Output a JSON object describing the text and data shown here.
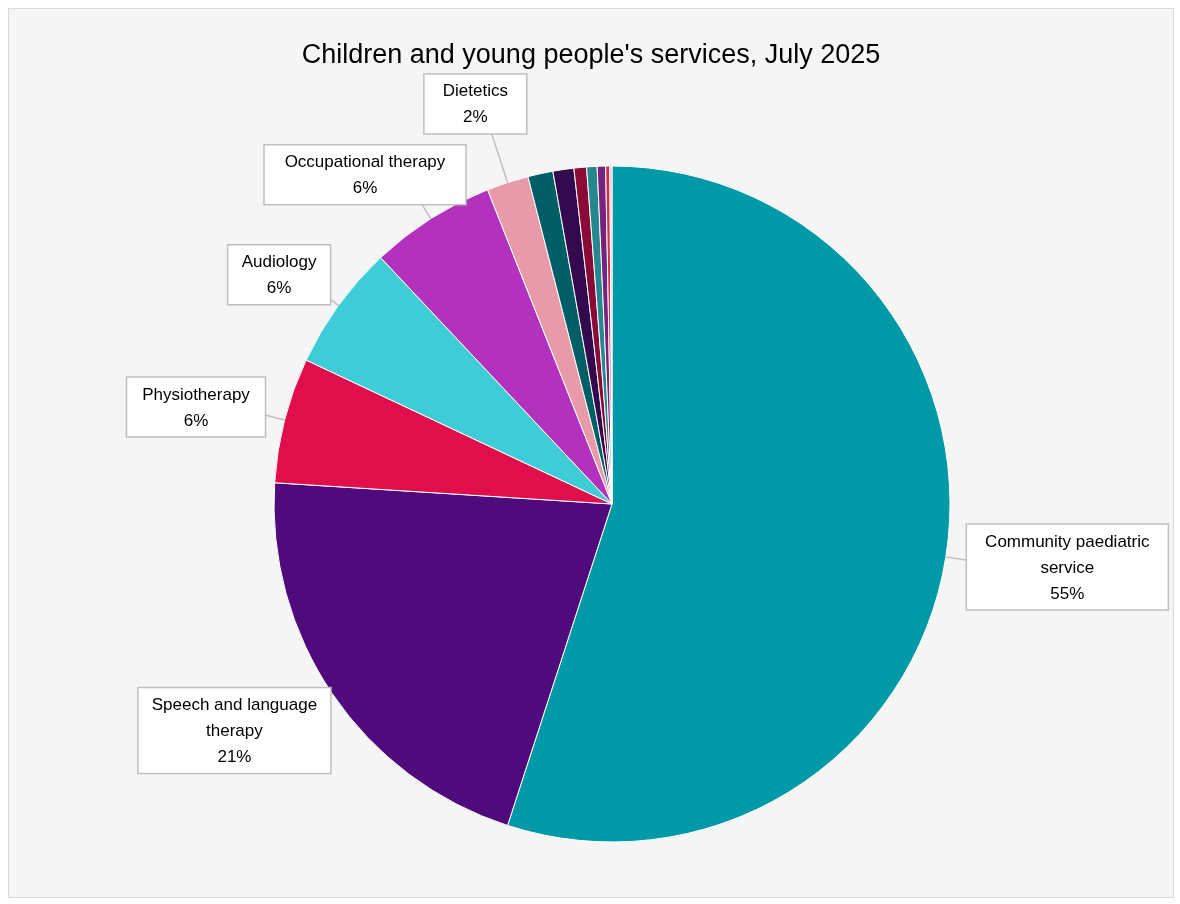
{
  "chart_data": {
    "type": "pie",
    "title": "Children and young people's services, July 2025",
    "categories": [
      "Community paediatric service",
      "Speech and language therapy",
      "Physiotherapy",
      "Audiology",
      "Occupational therapy",
      "Dietetics",
      null,
      null,
      null,
      null,
      null,
      null,
      null
    ],
    "values": [
      55,
      21,
      6,
      6,
      6,
      2,
      1.2,
      1.0,
      0.6,
      0.5,
      0.4,
      0.2,
      0.1
    ],
    "value_labels": [
      "55%",
      "21%",
      "6%",
      "6%",
      "6%",
      "2%",
      null,
      null,
      null,
      null,
      null,
      null,
      null
    ],
    "colors": [
      "#0099a8",
      "#4f0b7b",
      "#e00e4a",
      "#3ecdd6",
      "#b232bd",
      "#e89aa9",
      "#005e66",
      "#330a4e",
      "#8a0b37",
      "#25888f",
      "#76237f",
      "#d0304a",
      "#f1b7c4"
    ],
    "legend": false
  }
}
